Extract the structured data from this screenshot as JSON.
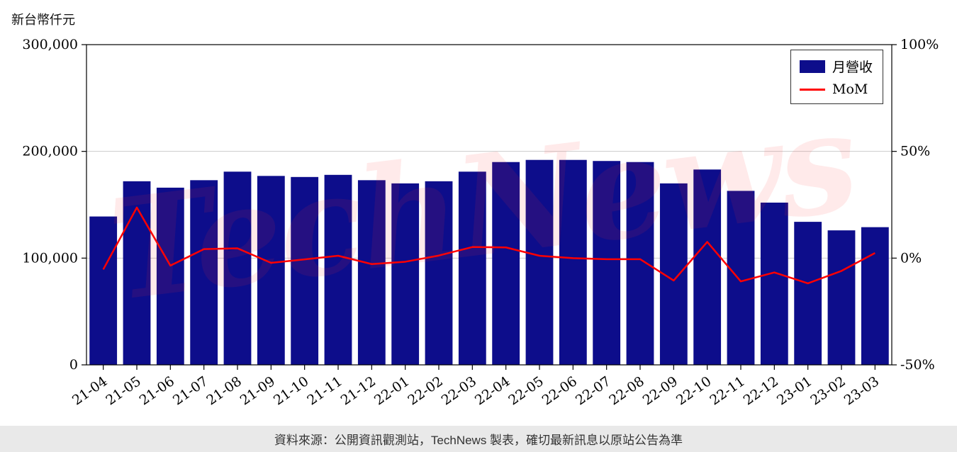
{
  "page": {
    "y_axis_unit_label": "新台幣仟元",
    "watermark": "TechNews",
    "footer": "資料來源：公開資訊觀測站，TechNews 製表，確切最新訊息以原站公告為準"
  },
  "chart_data": {
    "type": "bar",
    "title": "",
    "categories": [
      "21-04",
      "21-05",
      "21-06",
      "21-07",
      "21-08",
      "21-09",
      "21-10",
      "21-11",
      "21-12",
      "22-01",
      "22-02",
      "22-03",
      "22-04",
      "22-05",
      "22-06",
      "22-07",
      "22-08",
      "22-09",
      "22-10",
      "22-11",
      "22-12",
      "23-01",
      "23-02",
      "23-03"
    ],
    "series": [
      {
        "name": "月營收",
        "type": "bar",
        "axis": "left",
        "color": "#0d0d8b",
        "values": [
          139000,
          172000,
          166000,
          173000,
          181000,
          177000,
          176000,
          178000,
          173000,
          170000,
          172000,
          181000,
          190000,
          192000,
          192000,
          191000,
          190000,
          170000,
          183000,
          163000,
          152000,
          134000,
          126000,
          129000
        ]
      },
      {
        "name": "MoM",
        "type": "line",
        "axis": "right",
        "color": "#ff0000",
        "values": [
          -5.3,
          23.7,
          -3.5,
          4.2,
          4.6,
          -2.2,
          -0.6,
          1.1,
          -2.8,
          -1.7,
          1.2,
          5.2,
          5.0,
          1.1,
          0.0,
          -0.5,
          -0.5,
          -10.5,
          7.6,
          -10.9,
          -6.7,
          -11.8,
          -6.0,
          2.4
        ]
      }
    ],
    "left_axis": {
      "label": "新台幣仟元",
      "min": 0,
      "max": 300000,
      "ticks": [
        0,
        100000,
        200000,
        300000
      ]
    },
    "right_axis": {
      "min": -50,
      "max": 100,
      "ticks": [
        -50,
        0,
        50,
        100
      ],
      "suffix": "%"
    },
    "grid": true,
    "legend_position": "top-right",
    "x_tick_rotation": -35
  }
}
